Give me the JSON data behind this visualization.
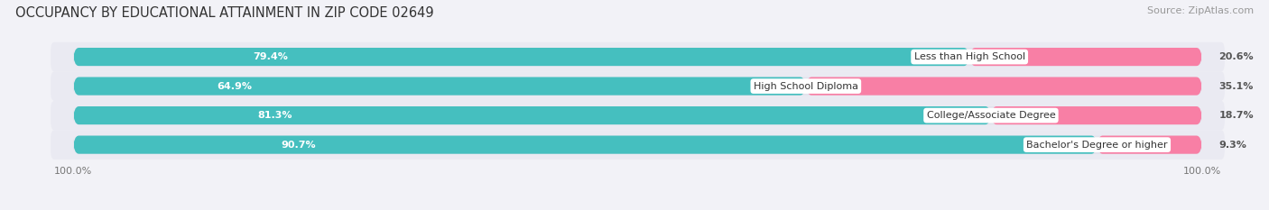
{
  "title": "OCCUPANCY BY EDUCATIONAL ATTAINMENT IN ZIP CODE 02649",
  "source": "Source: ZipAtlas.com",
  "categories": [
    "Less than High School",
    "High School Diploma",
    "College/Associate Degree",
    "Bachelor's Degree or higher"
  ],
  "owner_values": [
    79.4,
    64.9,
    81.3,
    90.7
  ],
  "renter_values": [
    20.6,
    35.1,
    18.7,
    9.3
  ],
  "owner_color": "#45bfbf",
  "renter_color": "#f87fa5",
  "background_color": "#f2f2f7",
  "bar_bg_color": "#e2e2ec",
  "row_bg_color": "#eaeaf2",
  "title_fontsize": 10.5,
  "source_fontsize": 8,
  "bar_label_fontsize": 8,
  "category_fontsize": 8,
  "axis_label_fontsize": 8,
  "legend_fontsize": 9,
  "renter_label_fontsize": 8
}
